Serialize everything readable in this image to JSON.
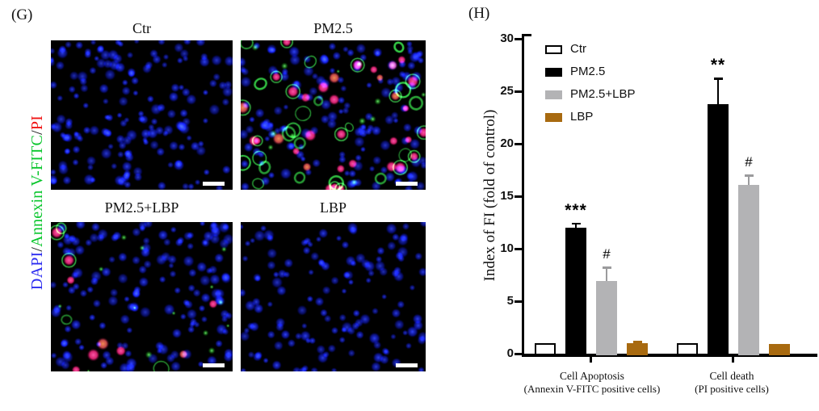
{
  "figure": {
    "panel_g": {
      "label": "(G)",
      "color_key": {
        "parts": [
          {
            "text": "DAPI",
            "color": "#2b2bf0"
          },
          {
            "text": "/",
            "color": "#141414"
          },
          {
            "text": "Annexin V-FITC",
            "color": "#09c62c"
          },
          {
            "text": "/",
            "color": "#141414"
          },
          {
            "text": "PI",
            "color": "#f01414"
          }
        ]
      },
      "images": [
        {
          "title": "Ctr",
          "composition": {
            "blue_nuclei": 170,
            "green_rings": 0,
            "green_dots": 0,
            "pink_cells": 0
          },
          "scale_bar": true
        },
        {
          "title": "PM2.5",
          "composition": {
            "blue_nuclei": 150,
            "green_rings": 20,
            "green_dots": 12,
            "pink_cells": 34
          },
          "scale_bar": true
        },
        {
          "title": "PM2.5+LBP",
          "composition": {
            "blue_nuclei": 155,
            "green_rings": 3,
            "green_dots": 14,
            "pink_cells": 9
          },
          "scale_bar": true
        },
        {
          "title": "LBP",
          "composition": {
            "blue_nuclei": 140,
            "green_rings": 0,
            "green_dots": 0,
            "pink_cells": 0
          },
          "scale_bar": true
        }
      ]
    },
    "panel_h": {
      "label": "(H)",
      "chart_data": {
        "type": "bar",
        "title": "",
        "xlabel": "",
        "ylabel": "Index of FI (fold of control)",
        "ylim": [
          0,
          30
        ],
        "yticks": [
          0,
          5,
          10,
          15,
          20,
          25,
          30
        ],
        "grid": false,
        "legend_position": "top-left-inside",
        "categories": [
          {
            "line1": "Cell Apoptosis",
            "line2": "(Annexin V-FITC positive cells)"
          },
          {
            "line1": "Cell death",
            "line2": "(PI positive cells)"
          }
        ],
        "series": [
          {
            "name": "Ctr",
            "fill": "#ffffff",
            "border": "#000000",
            "values": [
              1.0,
              1.0
            ],
            "errors": [
              0,
              0
            ],
            "significance": [
              "",
              ""
            ]
          },
          {
            "name": "PM2.5",
            "fill": "#000000",
            "border": "#000000",
            "values": [
              12.0,
              23.8
            ],
            "errors": [
              0.4,
              2.4
            ],
            "significance": [
              "***",
              "**"
            ]
          },
          {
            "name": "PM2.5+LBP",
            "fill": "#b3b3b5",
            "border": "#a6a6a8",
            "values": [
              6.9,
              16.1
            ],
            "errors": [
              1.3,
              0.9
            ],
            "significance": [
              "#",
              "#"
            ]
          },
          {
            "name": "LBP",
            "fill": "#a86a10",
            "border": "#a86a10",
            "values": [
              1.0,
              0.9
            ],
            "errors": [
              0.15,
              0
            ],
            "significance": [
              "",
              ""
            ]
          }
        ]
      }
    }
  }
}
